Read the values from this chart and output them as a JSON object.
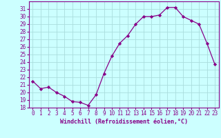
{
  "x": [
    0,
    1,
    2,
    3,
    4,
    5,
    6,
    7,
    8,
    9,
    10,
    11,
    12,
    13,
    14,
    15,
    16,
    17,
    18,
    19,
    20,
    21,
    22,
    23
  ],
  "y": [
    21.5,
    20.5,
    20.7,
    20.0,
    19.5,
    18.8,
    18.7,
    18.3,
    19.7,
    22.5,
    24.8,
    26.5,
    27.5,
    29.0,
    30.0,
    30.0,
    30.2,
    31.2,
    31.2,
    30.0,
    29.5,
    29.0,
    26.5,
    23.7
  ],
  "line_color": "#880088",
  "marker": "D",
  "marker_size": 2.2,
  "bg_color": "#ccffff",
  "grid_color": "#aadddd",
  "xlabel": "Windchill (Refroidissement éolien,°C)",
  "ylim": [
    18,
    32
  ],
  "xlim": [
    -0.5,
    23.5
  ],
  "yticks": [
    18,
    19,
    20,
    21,
    22,
    23,
    24,
    25,
    26,
    27,
    28,
    29,
    30,
    31
  ],
  "xticks": [
    0,
    1,
    2,
    3,
    4,
    5,
    6,
    7,
    8,
    9,
    10,
    11,
    12,
    13,
    14,
    15,
    16,
    17,
    18,
    19,
    20,
    21,
    22,
    23
  ],
  "font_color": "#880088",
  "tick_fontsize": 5.5,
  "xlabel_fontsize": 6.0
}
